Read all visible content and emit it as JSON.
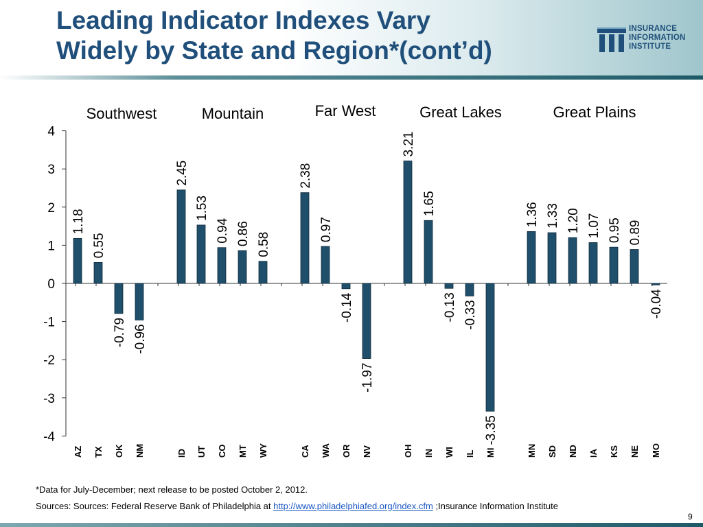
{
  "slide": {
    "title_line1": "Leading Indicator Indexes Vary",
    "title_line2": "Widely by State and Region*(cont’d)",
    "logo_line1": "INSURANCE",
    "logo_line2": "INFORMATION",
    "logo_line3": "INSTITUTE",
    "footnote": "*Data for July-December; next release to be posted October 2, 2012.",
    "sources_prefix": "Sources:  Sources: Federal Reserve Bank of Philadelphia at ",
    "sources_link": "http://www.philadelphiafed.org/index.cfm",
    "sources_suffix": " ;Insurance Information Institute",
    "page_number": "9",
    "colors": {
      "title": "#1f4f7a",
      "bar": "#1f4f6b",
      "accent": "#1d5a68",
      "link": "#1a56c4"
    }
  },
  "chart_data": {
    "type": "bar",
    "ylim": [
      -4,
      4
    ],
    "yticks": [
      "4",
      "3",
      "2",
      "1",
      "0",
      "-1",
      "-2",
      "-3",
      "-4"
    ],
    "groups": [
      {
        "name": "Southwest",
        "states": [
          "AZ",
          "TX",
          "OK",
          "NM"
        ],
        "values": [
          1.18,
          0.55,
          -0.79,
          -0.96
        ],
        "labels": [
          "1.18",
          "0.55",
          "-0.79",
          "-0.96"
        ]
      },
      {
        "name": "Mountain",
        "states": [
          "ID",
          "UT",
          "CO",
          "MT",
          "WY"
        ],
        "values": [
          2.45,
          1.53,
          0.94,
          0.86,
          0.58
        ],
        "labels": [
          "2.45",
          "1.53",
          "0.94",
          "0.86",
          "0.58"
        ]
      },
      {
        "name": "Far West",
        "states": [
          "CA",
          "WA",
          "OR",
          "NV"
        ],
        "values": [
          2.38,
          0.97,
          -0.14,
          -1.97
        ],
        "labels": [
          "2.38",
          "0.97",
          "-0.14",
          "-1.97"
        ]
      },
      {
        "name": "Great Lakes",
        "states": [
          "OH",
          "IN",
          "WI",
          "IL",
          "MI"
        ],
        "values": [
          3.21,
          1.65,
          -0.13,
          -0.33,
          -3.35
        ],
        "labels": [
          "3.21",
          "1.65",
          "-0.13",
          "-0.33",
          "-3.35"
        ]
      },
      {
        "name": "Great Plains",
        "states": [
          "MN",
          "SD",
          "ND",
          "IA",
          "KS",
          "NE",
          "MO"
        ],
        "values": [
          1.36,
          1.33,
          1.2,
          1.07,
          0.95,
          0.89,
          -0.04
        ],
        "labels": [
          "1.36",
          "1.33",
          "1.20",
          "1.07",
          "0.95",
          "0.89",
          "-0.04"
        ]
      }
    ]
  }
}
